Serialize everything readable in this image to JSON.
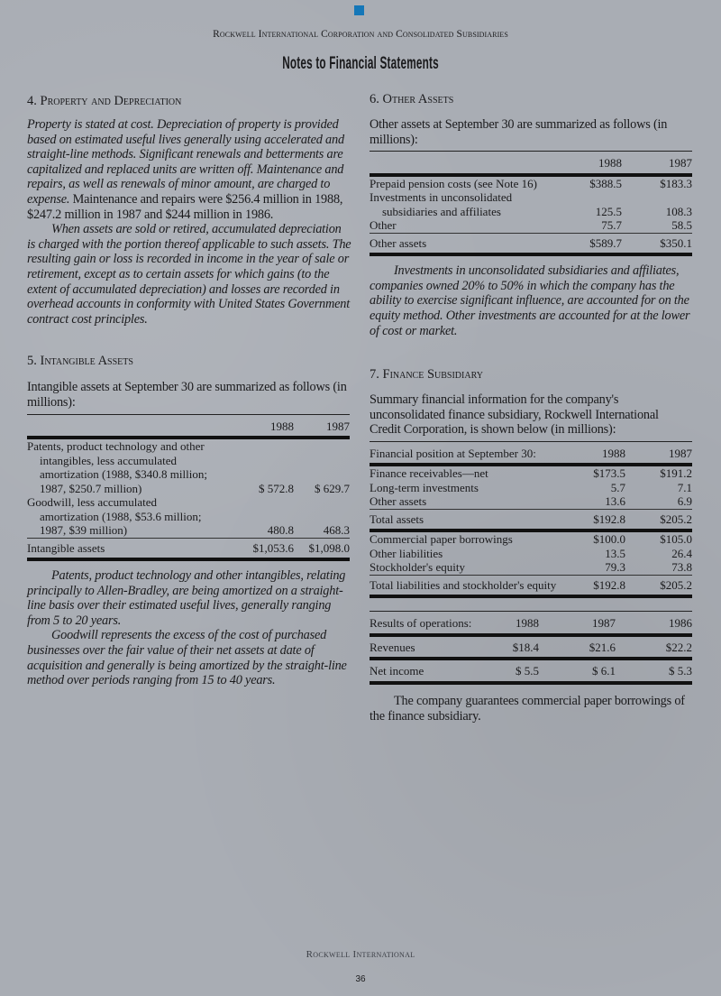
{
  "header": {
    "company": "Rockwell International Corporation and Consolidated Subsidiaries",
    "title": "Notes to Financial Statements",
    "brand_color": "#1577b8"
  },
  "note4": {
    "heading": "4. Property and Depreciation",
    "para1_italic": "Property is stated at cost. Depreciation of property is provided based on estimated useful lives generally using accelerated and straight-line methods. Significant renewals and betterments are capitalized and replaced units are written off. Maintenance and repairs, as well as renewals of minor amount, are charged to expense.",
    "para1_roman": " Maintenance and repairs were $256.4 million in 1988, $247.2 million in 1987 and $244 million in 1986.",
    "para2": "When assets are sold or retired, accumulated depreciation is charged with the portion thereof applicable to such assets. The resulting gain or loss is recorded in income in the year of sale or retirement, except as to certain assets for which gains (to the extent of accumulated depreciation) and losses are recorded in overhead accounts in conformity with United States Government contract cost principles."
  },
  "note5": {
    "heading": "5. Intangible Assets",
    "intro": "Intangible assets at September 30 are summarized as follows (in millions):",
    "table": {
      "columns": [
        "",
        "1988",
        "1987"
      ],
      "rows": [
        {
          "label": "Patents, product technology and other intangibles, less accumulated amortization (1988, $340.8 million; 1987, $250.7 million)",
          "values": [
            "$  572.8",
            "$  629.7"
          ],
          "style": "wrap"
        },
        {
          "label": "Goodwill, less accumulated amortization (1988, $53.6 million; 1987, $39 million)",
          "values": [
            "480.8",
            "468.3"
          ],
          "style": "wrap"
        },
        {
          "label": "Intangible assets",
          "values": [
            "$1,053.6",
            "$1,098.0"
          ],
          "style": "total"
        }
      ]
    },
    "para1": "Patents, product technology and other intangibles, relating principally to Allen-Bradley, are being amortized on a straight-line basis over their estimated useful lives, generally ranging from 5 to 20 years.",
    "para2": "Goodwill represents the excess of the cost of purchased businesses over the fair value of their net assets at date of acquisition and generally is being amortized by the straight-line method over periods ranging from 15 to 40 years."
  },
  "note6": {
    "heading": "6. Other Assets",
    "intro": "Other assets at September 30 are summarized as follows (in millions):",
    "table": {
      "columns": [
        "",
        "1988",
        "1987"
      ],
      "rows": [
        {
          "label": "Prepaid pension costs (see Note 16)",
          "values": [
            "$388.5",
            "$183.3"
          ]
        },
        {
          "label": "Investments in unconsolidated",
          "values": [
            "",
            ""
          ]
        },
        {
          "label": "subsidiaries and affiliates",
          "values": [
            "125.5",
            "108.3"
          ],
          "style": "sub"
        },
        {
          "label": "Other",
          "values": [
            "75.7",
            "58.5"
          ]
        },
        {
          "label": "Other assets",
          "values": [
            "$589.7",
            "$350.1"
          ],
          "style": "total"
        }
      ]
    },
    "para": "Investments in unconsolidated subsidiaries and affiliates, companies owned 20% to 50% in which the company has the ability to exercise significant influence, are accounted for on the equity method. Other investments are accounted for at the lower of cost or market."
  },
  "note7": {
    "heading": "7. Finance Subsidiary",
    "intro": "Summary financial information for the company's unconsolidated finance subsidiary, Rockwell International Credit Corporation, is shown below (in millions):",
    "position_table": {
      "columns": [
        "Financial position at September 30:",
        "1988",
        "1987"
      ],
      "rows": [
        {
          "label": "Finance receivables—net",
          "values": [
            "$173.5",
            "$191.2"
          ]
        },
        {
          "label": "Long-term investments",
          "values": [
            "5.7",
            "7.1"
          ]
        },
        {
          "label": "Other assets",
          "values": [
            "13.6",
            "6.9"
          ]
        },
        {
          "label": "Total assets",
          "values": [
            "$192.8",
            "$205.2"
          ],
          "style": "total"
        },
        {
          "label": "Commercial paper borrowings",
          "values": [
            "$100.0",
            "$105.0"
          ],
          "style": "gap"
        },
        {
          "label": "Other liabilities",
          "values": [
            "13.5",
            "26.4"
          ]
        },
        {
          "label": "Stockholder's equity",
          "values": [
            "79.3",
            "73.8"
          ]
        },
        {
          "label": "Total liabilities and stockholder's equity",
          "values": [
            "$192.8",
            "$205.2"
          ],
          "style": "total"
        }
      ]
    },
    "results_table": {
      "columns": [
        "Results of operations:",
        "1988",
        "1987",
        "1986"
      ],
      "rows": [
        {
          "label": "Revenues",
          "values": [
            "$18.4",
            "$21.6",
            "$22.2"
          ],
          "style": "thickrow"
        },
        {
          "label": "Net income",
          "values": [
            "$  5.5",
            "$  6.1",
            "$  5.3"
          ],
          "style": "thickrow"
        }
      ]
    },
    "para": "The company guarantees commercial paper borrowings of the finance subsidiary."
  },
  "footer": {
    "brand": "Rockwell International",
    "page_number": "36"
  }
}
